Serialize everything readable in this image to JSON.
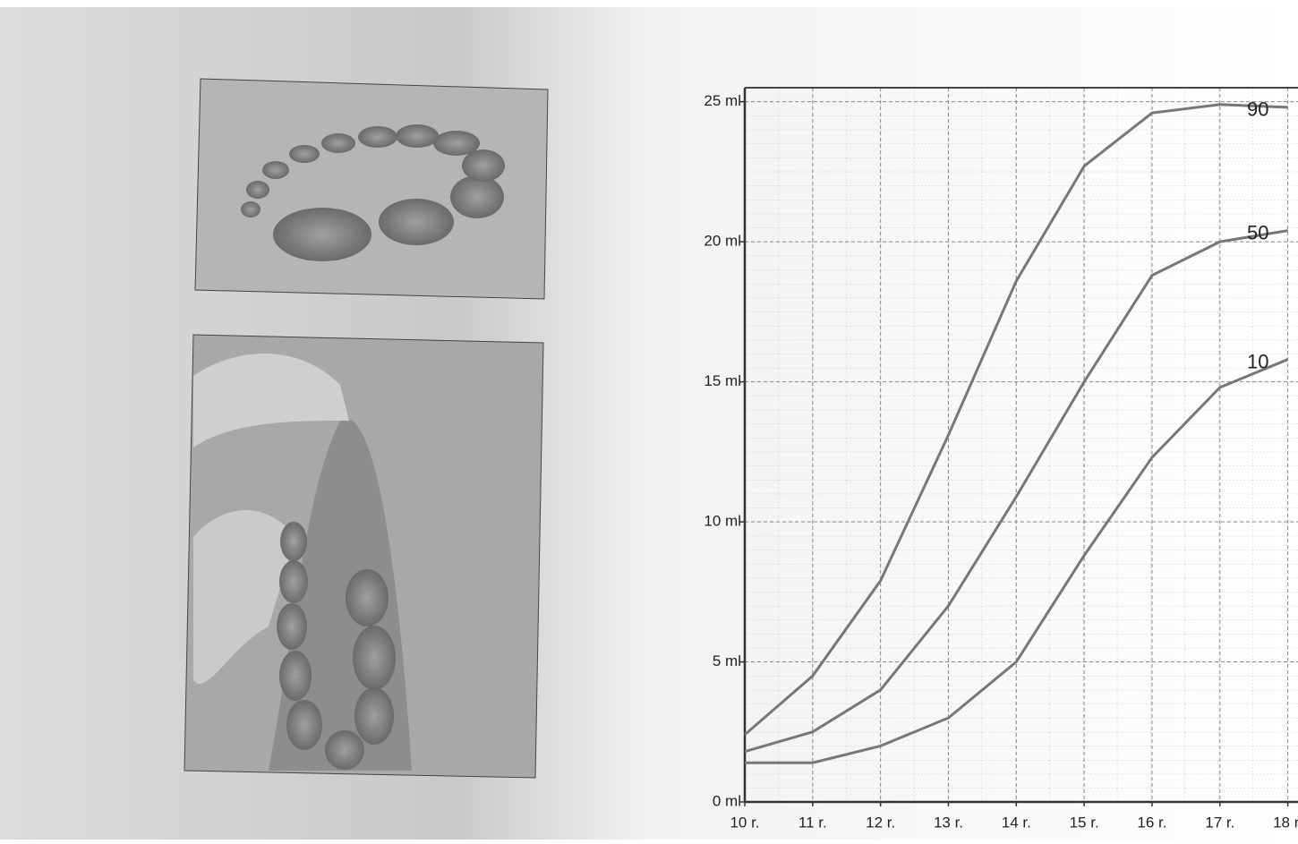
{
  "chart_data": {
    "type": "line",
    "categories": null,
    "x": [
      10,
      11,
      12,
      13,
      14,
      15,
      16,
      17,
      18
    ],
    "series": [
      {
        "name": "90",
        "color": "#777777",
        "values": [
          2.4,
          4.5,
          7.9,
          13.1,
          18.6,
          22.7,
          24.6,
          24.9,
          24.8
        ]
      },
      {
        "name": "50",
        "color": "#777777",
        "values": [
          1.8,
          2.5,
          4.0,
          7.0,
          10.9,
          15.0,
          18.8,
          20.0,
          20.4
        ]
      },
      {
        "name": "10",
        "color": "#777777",
        "values": [
          1.4,
          1.4,
          2.0,
          3.0,
          5.0,
          8.8,
          12.3,
          14.8,
          15.8
        ]
      }
    ],
    "xlim": [
      10,
      18.15
    ],
    "ylim": [
      0,
      25.5
    ],
    "xticks": [
      {
        "value": 10,
        "label": "10 r."
      },
      {
        "value": 11,
        "label": "11 r."
      },
      {
        "value": 12,
        "label": "12 r."
      },
      {
        "value": 13,
        "label": "13 r."
      },
      {
        "value": 14,
        "label": "14 r."
      },
      {
        "value": 15,
        "label": "15 r."
      },
      {
        "value": 16,
        "label": "16 r."
      },
      {
        "value": 17,
        "label": "17 r."
      },
      {
        "value": 18,
        "label": "18 r."
      }
    ],
    "yticks": [
      {
        "value": 0,
        "label": "0 ml"
      },
      {
        "value": 5,
        "label": "5 ml"
      },
      {
        "value": 10,
        "label": "10 ml"
      },
      {
        "value": 15,
        "label": "15 ml"
      },
      {
        "value": 20,
        "label": "20 ml"
      },
      {
        "value": 25,
        "label": "25 ml"
      }
    ],
    "grid": true
  }
}
